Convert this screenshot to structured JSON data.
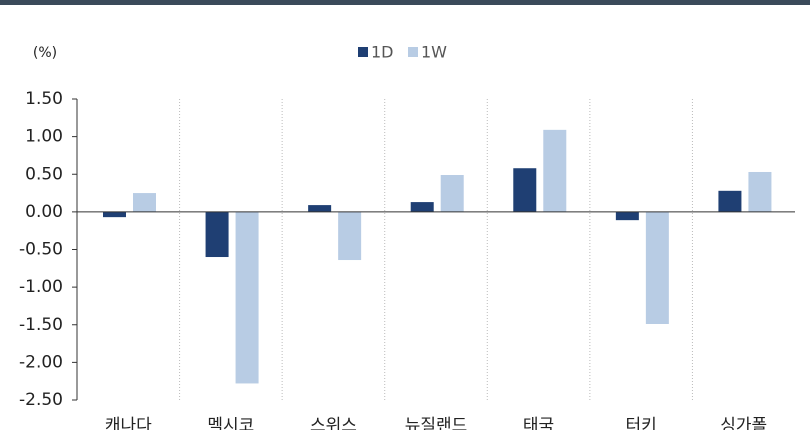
{
  "chart_data": {
    "type": "bar",
    "unit_label": "(%)",
    "categories": [
      "캐나다",
      "멕시코",
      "스위스",
      "뉴질랜드",
      "태국",
      "터키",
      "싱가폴"
    ],
    "series": [
      {
        "name": "1D",
        "color": "#1f3f73",
        "values": [
          -0.07,
          -0.6,
          0.09,
          0.13,
          0.58,
          -0.11,
          0.28
        ]
      },
      {
        "name": "1W",
        "color": "#b8cce4",
        "values": [
          0.25,
          -2.28,
          -0.64,
          0.49,
          1.09,
          -1.49,
          0.53
        ]
      }
    ],
    "ylim": [
      -2.5,
      1.5
    ],
    "yticks": [
      {
        "value": -2.5,
        "label": "-2.50"
      },
      {
        "value": -2.0,
        "label": "-2.00"
      },
      {
        "value": -1.5,
        "label": "-1.50"
      },
      {
        "value": -1.0,
        "label": "-1.00"
      },
      {
        "value": -0.5,
        "label": "-0.50"
      },
      {
        "value": 0,
        "label": "0.00"
      },
      {
        "value": 0.5,
        "label": "0.50"
      },
      {
        "value": 1.0,
        "label": "1.00"
      },
      {
        "value": 1.5,
        "label": "1.50"
      }
    ],
    "legend": "top"
  }
}
